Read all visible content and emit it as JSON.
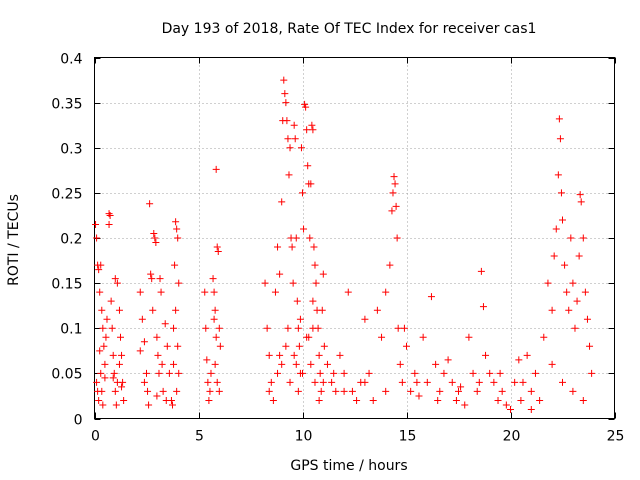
{
  "chart_data": {
    "type": "scatter",
    "title": "Day 193 of 2018, Rate Of TEC Index for receiver cas1",
    "xlabel": "GPS time / hours",
    "ylabel": "ROTI / TECUs",
    "xlim": [
      0,
      25
    ],
    "ylim": [
      0,
      0.4
    ],
    "xticks": [
      0,
      5,
      10,
      15,
      20,
      25
    ],
    "yticks": [
      0,
      0.05,
      0.1,
      0.15,
      0.2,
      0.25,
      0.3,
      0.35,
      0.4
    ],
    "xtick_labels": [
      "0",
      "5",
      "10",
      "15",
      "20",
      "25"
    ],
    "ytick_labels": [
      "0",
      "0.05",
      "0.1",
      "0.15",
      "0.2",
      "0.25",
      "0.3",
      "0.35",
      "0.4"
    ],
    "grid": true,
    "marker": "+",
    "series": [
      {
        "name": "ROTI",
        "color": "#ff0000",
        "points": [
          [
            0.05,
            0.215
          ],
          [
            0.1,
            0.2
          ],
          [
            0.15,
            0.17
          ],
          [
            0.2,
            0.165
          ],
          [
            0.25,
            0.14
          ],
          [
            0.3,
            0.17
          ],
          [
            0.35,
            0.12
          ],
          [
            0.4,
            0.1
          ],
          [
            0.45,
            0.08
          ],
          [
            0.5,
            0.06
          ],
          [
            0.1,
            0.04
          ],
          [
            0.15,
            0.03
          ],
          [
            0.2,
            0.02
          ],
          [
            0.3,
            0.05
          ],
          [
            0.35,
            0.03
          ],
          [
            0.4,
            0.015
          ],
          [
            0.5,
            0.045
          ],
          [
            0.55,
            0.09
          ],
          [
            0.6,
            0.11
          ],
          [
            0.25,
            0.075
          ],
          [
            0.7,
            0.227
          ],
          [
            0.75,
            0.225
          ],
          [
            0.7,
            0.215
          ],
          [
            0.8,
            0.13
          ],
          [
            0.85,
            0.1
          ],
          [
            0.9,
            0.07
          ],
          [
            0.95,
            0.05
          ],
          [
            1.0,
            0.03
          ],
          [
            1.05,
            0.015
          ],
          [
            1.1,
            0.04
          ],
          [
            1.0,
            0.155
          ],
          [
            1.1,
            0.15
          ],
          [
            1.2,
            0.12
          ],
          [
            1.25,
            0.09
          ],
          [
            1.3,
            0.07
          ],
          [
            1.35,
            0.04
          ],
          [
            1.4,
            0.02
          ],
          [
            0.9,
            0.045
          ],
          [
            1.2,
            0.06
          ],
          [
            1.3,
            0.035
          ],
          [
            2.2,
            0.14
          ],
          [
            2.3,
            0.11
          ],
          [
            2.4,
            0.085
          ],
          [
            2.5,
            0.05
          ],
          [
            2.55,
            0.03
          ],
          [
            2.6,
            0.015
          ],
          [
            2.65,
            0.238
          ],
          [
            2.7,
            0.16
          ],
          [
            2.75,
            0.155
          ],
          [
            2.8,
            0.12
          ],
          [
            2.85,
            0.205
          ],
          [
            2.9,
            0.2
          ],
          [
            2.95,
            0.195
          ],
          [
            3.0,
            0.09
          ],
          [
            3.05,
            0.07
          ],
          [
            3.1,
            0.05
          ],
          [
            3.15,
            0.155
          ],
          [
            3.2,
            0.14
          ],
          [
            3.25,
            0.06
          ],
          [
            3.3,
            0.03
          ],
          [
            3.4,
            0.105
          ],
          [
            3.5,
            0.08
          ],
          [
            3.6,
            0.05
          ],
          [
            3.7,
            0.02
          ],
          [
            3.8,
            0.06
          ],
          [
            3.85,
            0.17
          ],
          [
            3.9,
            0.218
          ],
          [
            3.95,
            0.21
          ],
          [
            4.0,
            0.2
          ],
          [
            4.05,
            0.15
          ],
          [
            3.8,
            0.1
          ],
          [
            3.9,
            0.12
          ],
          [
            4.0,
            0.08
          ],
          [
            4.05,
            0.05
          ],
          [
            3.95,
            0.03
          ],
          [
            3.75,
            0.015
          ],
          [
            2.4,
            0.04
          ],
          [
            2.2,
            0.075
          ],
          [
            3.0,
            0.025
          ],
          [
            3.45,
            0.02
          ],
          [
            5.3,
            0.14
          ],
          [
            5.35,
            0.1
          ],
          [
            5.4,
            0.065
          ],
          [
            5.45,
            0.04
          ],
          [
            5.5,
            0.02
          ],
          [
            5.55,
            0.03
          ],
          [
            5.7,
            0.155
          ],
          [
            5.75,
            0.14
          ],
          [
            5.8,
            0.12
          ],
          [
            5.85,
            0.276
          ],
          [
            5.9,
            0.19
          ],
          [
            5.95,
            0.185
          ],
          [
            6.0,
            0.1
          ],
          [
            6.05,
            0.08
          ],
          [
            5.8,
            0.06
          ],
          [
            5.9,
            0.04
          ],
          [
            6.0,
            0.03
          ],
          [
            5.75,
            0.11
          ],
          [
            5.85,
            0.09
          ],
          [
            5.6,
            0.05
          ],
          [
            8.2,
            0.15
          ],
          [
            8.3,
            0.1
          ],
          [
            8.4,
            0.07
          ],
          [
            8.5,
            0.04
          ],
          [
            8.6,
            0.02
          ],
          [
            8.7,
            0.14
          ],
          [
            8.8,
            0.19
          ],
          [
            8.9,
            0.16
          ],
          [
            9.0,
            0.24
          ],
          [
            9.05,
            0.33
          ],
          [
            9.1,
            0.375
          ],
          [
            9.15,
            0.36
          ],
          [
            9.2,
            0.35
          ],
          [
            9.25,
            0.33
          ],
          [
            9.3,
            0.31
          ],
          [
            9.35,
            0.27
          ],
          [
            9.4,
            0.3
          ],
          [
            9.45,
            0.2
          ],
          [
            9.5,
            0.19
          ],
          [
            9.55,
            0.15
          ],
          [
            9.6,
            0.325
          ],
          [
            9.65,
            0.31
          ],
          [
            9.7,
            0.2
          ],
          [
            9.75,
            0.13
          ],
          [
            9.8,
            0.1
          ],
          [
            9.85,
            0.08
          ],
          [
            9.9,
            0.05
          ],
          [
            9.95,
            0.3
          ],
          [
            10.0,
            0.25
          ],
          [
            10.05,
            0.21
          ],
          [
            10.1,
            0.348
          ],
          [
            10.15,
            0.345
          ],
          [
            10.2,
            0.32
          ],
          [
            10.25,
            0.28
          ],
          [
            10.3,
            0.26
          ],
          [
            10.35,
            0.2
          ],
          [
            10.4,
            0.26
          ],
          [
            10.45,
            0.325
          ],
          [
            10.5,
            0.32
          ],
          [
            10.55,
            0.19
          ],
          [
            10.6,
            0.17
          ],
          [
            10.65,
            0.15
          ],
          [
            10.7,
            0.12
          ],
          [
            10.75,
            0.1
          ],
          [
            10.8,
            0.07
          ],
          [
            10.85,
            0.05
          ],
          [
            10.9,
            0.03
          ],
          [
            10.95,
            0.12
          ],
          [
            11.0,
            0.16
          ],
          [
            11.05,
            0.08
          ],
          [
            8.4,
            0.03
          ],
          [
            8.8,
            0.05
          ],
          [
            9.0,
            0.06
          ],
          [
            9.2,
            0.08
          ],
          [
            9.4,
            0.04
          ],
          [
            9.6,
            0.07
          ],
          [
            9.8,
            0.03
          ],
          [
            10.0,
            0.05
          ],
          [
            10.2,
            0.09
          ],
          [
            10.4,
            0.06
          ],
          [
            10.6,
            0.04
          ],
          [
            10.8,
            0.02
          ],
          [
            11.2,
            0.06
          ],
          [
            11.4,
            0.04
          ],
          [
            11.6,
            0.03
          ],
          [
            11.8,
            0.07
          ],
          [
            12.0,
            0.05
          ],
          [
            12.2,
            0.14
          ],
          [
            12.4,
            0.03
          ],
          [
            12.6,
            0.02
          ],
          [
            12.8,
            0.04
          ],
          [
            13.0,
            0.11
          ],
          [
            13.2,
            0.05
          ],
          [
            13.4,
            0.02
          ],
          [
            13.6,
            0.12
          ],
          [
            13.8,
            0.09
          ],
          [
            14.0,
            0.14
          ],
          [
            14.2,
            0.17
          ],
          [
            14.3,
            0.23
          ],
          [
            14.35,
            0.25
          ],
          [
            14.4,
            0.268
          ],
          [
            14.45,
            0.26
          ],
          [
            14.5,
            0.235
          ],
          [
            14.55,
            0.2
          ],
          [
            14.6,
            0.1
          ],
          [
            14.7,
            0.06
          ],
          [
            14.8,
            0.04
          ],
          [
            14.9,
            0.1
          ],
          [
            15.0,
            0.08
          ],
          [
            15.2,
            0.03
          ],
          [
            15.4,
            0.05
          ],
          [
            15.6,
            0.025
          ],
          [
            15.8,
            0.09
          ],
          [
            16.0,
            0.04
          ],
          [
            16.2,
            0.135
          ],
          [
            16.4,
            0.06
          ],
          [
            16.6,
            0.03
          ],
          [
            16.8,
            0.05
          ],
          [
            17.0,
            0.065
          ],
          [
            17.2,
            0.04
          ],
          [
            17.4,
            0.02
          ],
          [
            17.6,
            0.035
          ],
          [
            17.8,
            0.015
          ],
          [
            18.0,
            0.09
          ],
          [
            18.2,
            0.05
          ],
          [
            18.4,
            0.03
          ],
          [
            18.6,
            0.163
          ],
          [
            18.7,
            0.124
          ],
          [
            18.8,
            0.07
          ],
          [
            19.0,
            0.05
          ],
          [
            19.2,
            0.04
          ],
          [
            19.4,
            0.02
          ],
          [
            19.6,
            0.03
          ],
          [
            19.8,
            0.015
          ],
          [
            20.0,
            0.01
          ],
          [
            20.2,
            0.04
          ],
          [
            20.4,
            0.065
          ],
          [
            20.6,
            0.04
          ],
          [
            20.8,
            0.07
          ],
          [
            21.0,
            0.03
          ],
          [
            21.2,
            0.05
          ],
          [
            21.4,
            0.02
          ],
          [
            21.6,
            0.09
          ],
          [
            21.8,
            0.15
          ],
          [
            22.0,
            0.12
          ],
          [
            22.1,
            0.18
          ],
          [
            22.2,
            0.21
          ],
          [
            22.3,
            0.27
          ],
          [
            22.35,
            0.332
          ],
          [
            22.4,
            0.31
          ],
          [
            22.45,
            0.25
          ],
          [
            22.5,
            0.22
          ],
          [
            22.6,
            0.17
          ],
          [
            22.7,
            0.14
          ],
          [
            22.8,
            0.12
          ],
          [
            22.9,
            0.2
          ],
          [
            23.0,
            0.15
          ],
          [
            23.1,
            0.1
          ],
          [
            23.2,
            0.13
          ],
          [
            23.3,
            0.18
          ],
          [
            23.35,
            0.248
          ],
          [
            23.4,
            0.24
          ],
          [
            23.5,
            0.2
          ],
          [
            23.6,
            0.14
          ],
          [
            23.7,
            0.11
          ],
          [
            23.8,
            0.08
          ],
          [
            23.9,
            0.05
          ],
          [
            22.0,
            0.06
          ],
          [
            22.5,
            0.04
          ],
          [
            23.0,
            0.03
          ],
          [
            23.5,
            0.02
          ],
          [
            21.0,
            0.01
          ],
          [
            20.5,
            0.02
          ],
          [
            19.5,
            0.05
          ],
          [
            18.5,
            0.04
          ],
          [
            17.5,
            0.03
          ],
          [
            16.5,
            0.02
          ],
          [
            15.5,
            0.04
          ],
          [
            14.0,
            0.03
          ],
          [
            13.0,
            0.04
          ],
          [
            12.0,
            0.03
          ],
          [
            11.5,
            0.05
          ],
          [
            11.0,
            0.04
          ],
          [
            10.5,
            0.1
          ],
          [
            10.5,
            0.13
          ],
          [
            10.3,
            0.09
          ],
          [
            9.9,
            0.11
          ],
          [
            9.7,
            0.06
          ],
          [
            9.3,
            0.1
          ],
          [
            8.9,
            0.07
          ]
        ]
      }
    ]
  }
}
